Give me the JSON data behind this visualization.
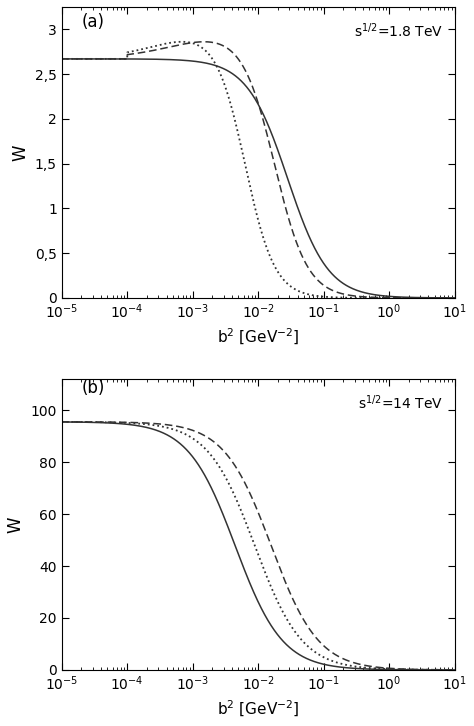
{
  "panel_a_label": "(a)",
  "panel_b_label": "(b)",
  "energy_a": "s$^{1/2}$=1.8 TeV",
  "energy_b": "s$^{1/2}$=14 TeV",
  "xlabel": "b$^{2}$ [GeV$^{-2}$]",
  "ylabel": "W",
  "xlim": [
    1e-05,
    10.0
  ],
  "ylim_a": [
    0.0,
    3.25
  ],
  "ylim_b": [
    0.0,
    112.0
  ],
  "yticks_a": [
    0.0,
    0.5,
    1.0,
    1.5,
    2.0,
    2.5,
    3.0
  ],
  "yticks_b": [
    0,
    20,
    40,
    60,
    80,
    100
  ],
  "background": "#ffffff",
  "line_color": "#333333",
  "a_solid_flat": 2.67,
  "a_peak": 3.0,
  "b_flat": 95.5
}
